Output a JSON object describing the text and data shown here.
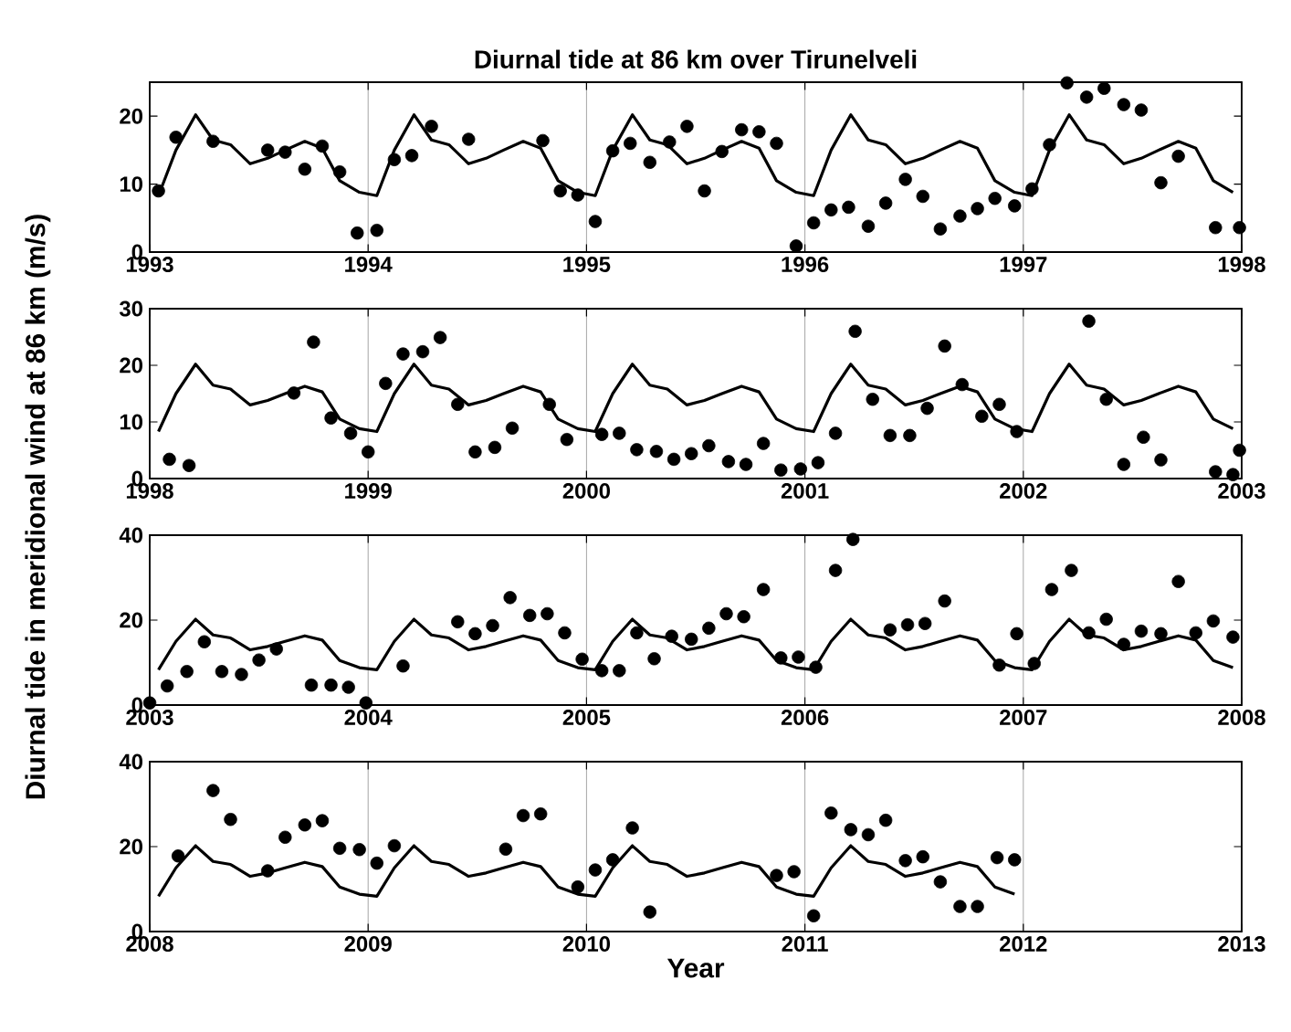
{
  "chart_data": [
    {
      "type": "line",
      "title": "Diurnal tide at 86 km over Tirunelveli",
      "ylabel": "Diurnal tide in meridional wind at 86 km (m/s)",
      "xlim": [
        1993,
        1998
      ],
      "xticks": [
        1993,
        1994,
        1995,
        1996,
        1997,
        1998
      ],
      "ylim": [
        0,
        25
      ],
      "yticks": [
        0,
        10,
        20
      ],
      "grid": "x",
      "series": [
        {
          "type": "line",
          "marker": "none",
          "color": "#000000",
          "x": [
            1993.04,
            1993.12,
            1993.21,
            1993.29,
            1993.37,
            1993.46,
            1993.54,
            1993.62,
            1993.71,
            1993.79,
            1993.87,
            1993.96,
            1994.04,
            1994.12,
            1994.21,
            1994.29,
            1994.37,
            1994.46,
            1994.54,
            1994.62,
            1994.71,
            1994.79,
            1994.87,
            1994.96,
            1995.04,
            1995.12,
            1995.21,
            1995.29,
            1995.37,
            1995.46,
            1995.54,
            1995.62,
            1995.71,
            1995.79,
            1995.87,
            1995.96,
            1996.04,
            1996.12,
            1996.21,
            1996.29,
            1996.37,
            1996.46,
            1996.54,
            1996.62,
            1996.71,
            1996.79,
            1996.87,
            1996.96,
            1997.04,
            1997.12,
            1997.21,
            1997.29,
            1997.37,
            1997.46,
            1997.54,
            1997.62,
            1997.71,
            1997.79,
            1997.87,
            1997.96
          ],
          "values": [
            8.3,
            15,
            20.2,
            16.5,
            15.8,
            13,
            13.8,
            15,
            16.3,
            15.3,
            10.5,
            8.8,
            8.3,
            15,
            20.2,
            16.5,
            15.8,
            13,
            13.8,
            15,
            16.3,
            15.3,
            10.5,
            8.8,
            8.3,
            15,
            20.2,
            16.5,
            15.8,
            13,
            13.8,
            15,
            16.3,
            15.3,
            10.5,
            8.8,
            8.3,
            15,
            20.2,
            16.5,
            15.8,
            13,
            13.8,
            15,
            16.3,
            15.3,
            10.5,
            8.8,
            8.3,
            15,
            20.2,
            16.5,
            15.8,
            13,
            13.8,
            15,
            16.3,
            15.3,
            10.5,
            8.8
          ]
        },
        {
          "type": "scatter",
          "marker": "circle",
          "color": "#000000",
          "x": [
            1993.04,
            1993.12,
            1993.29,
            1993.54,
            1993.62,
            1993.71,
            1993.79,
            1993.87,
            1993.95,
            1994.04,
            1994.12,
            1994.2,
            1994.29,
            1994.46,
            1994.8,
            1994.88,
            1994.96,
            1995.04,
            1995.12,
            1995.2,
            1995.29,
            1995.38,
            1995.46,
            1995.54,
            1995.62,
            1995.71,
            1995.79,
            1995.87,
            1995.96,
            1996.04,
            1996.12,
            1996.2,
            1996.29,
            1996.37,
            1996.46,
            1996.54,
            1996.62,
            1996.71,
            1996.79,
            1996.87,
            1996.96,
            1997.04,
            1997.12,
            1997.2,
            1997.29,
            1997.37,
            1997.46,
            1997.54,
            1997.63,
            1997.71,
            1997.88,
            1997.99
          ],
          "values": [
            9.0,
            16.9,
            16.3,
            15.0,
            14.7,
            12.2,
            15.6,
            11.8,
            2.8,
            3.2,
            13.6,
            14.2,
            18.5,
            16.6,
            16.4,
            9.0,
            8.4,
            4.5,
            14.9,
            16.0,
            13.2,
            16.2,
            18.5,
            9.0,
            14.8,
            18.0,
            17.7,
            16.0,
            0.9,
            4.3,
            6.2,
            6.6,
            3.8,
            7.2,
            10.7,
            8.2,
            3.4,
            5.3,
            6.4,
            7.9,
            6.8,
            9.3,
            15.8,
            24.9,
            22.8,
            24.1,
            21.7,
            20.9,
            10.2,
            14.1,
            3.6,
            3.6
          ]
        }
      ]
    },
    {
      "type": "line",
      "xlim": [
        1998,
        2003
      ],
      "xticks": [
        1998,
        1999,
        2000,
        2001,
        2002,
        2003
      ],
      "ylim": [
        0,
        30
      ],
      "yticks": [
        0,
        10,
        20,
        30
      ],
      "grid": "x",
      "series": [
        {
          "type": "line",
          "marker": "none",
          "color": "#000000",
          "x": [
            1998.04,
            1998.12,
            1998.21,
            1998.29,
            1998.37,
            1998.46,
            1998.54,
            1998.62,
            1998.71,
            1998.79,
            1998.87,
            1998.96,
            1999.04,
            1999.12,
            1999.21,
            1999.29,
            1999.37,
            1999.46,
            1999.54,
            1999.62,
            1999.71,
            1999.79,
            1999.87,
            1999.96,
            2000.04,
            2000.12,
            2000.21,
            2000.29,
            2000.37,
            2000.46,
            2000.54,
            2000.62,
            2000.71,
            2000.79,
            2000.87,
            2000.96,
            2001.04,
            2001.12,
            2001.21,
            2001.29,
            2001.37,
            2001.46,
            2001.54,
            2001.62,
            2001.71,
            2001.79,
            2001.87,
            2001.96,
            2002.04,
            2002.12,
            2002.21,
            2002.29,
            2002.37,
            2002.46,
            2002.54,
            2002.62,
            2002.71,
            2002.79,
            2002.87,
            2002.96
          ],
          "values": [
            8.3,
            15,
            20.2,
            16.5,
            15.8,
            13,
            13.8,
            15,
            16.3,
            15.3,
            10.5,
            8.8,
            8.3,
            15,
            20.2,
            16.5,
            15.8,
            13,
            13.8,
            15,
            16.3,
            15.3,
            10.5,
            8.8,
            8.3,
            15,
            20.2,
            16.5,
            15.8,
            13,
            13.8,
            15,
            16.3,
            15.3,
            10.5,
            8.8,
            8.3,
            15,
            20.2,
            16.5,
            15.8,
            13,
            13.8,
            15,
            16.3,
            15.3,
            10.5,
            8.8,
            8.3,
            15,
            20.2,
            16.5,
            15.8,
            13,
            13.8,
            15,
            16.3,
            15.3,
            10.5,
            8.8
          ]
        },
        {
          "type": "scatter",
          "marker": "circle",
          "color": "#000000",
          "x": [
            1998.09,
            1998.18,
            1998.66,
            1998.75,
            1998.83,
            1998.92,
            1999.0,
            1999.08,
            1999.16,
            1999.25,
            1999.33,
            1999.41,
            1999.49,
            1999.58,
            1999.66,
            1999.83,
            1999.91,
            2000.07,
            2000.15,
            2000.23,
            2000.32,
            2000.4,
            2000.48,
            2000.56,
            2000.65,
            2000.73,
            2000.81,
            2000.89,
            2000.98,
            2001.06,
            2001.14,
            2001.23,
            2001.31,
            2001.39,
            2001.48,
            2001.56,
            2001.64,
            2001.72,
            2001.81,
            2001.89,
            2001.97,
            2002.3,
            2002.38,
            2002.46,
            2002.55,
            2002.63,
            2002.88,
            2002.96,
            2002.99
          ],
          "values": [
            3.4,
            2.3,
            15.1,
            24.1,
            10.7,
            8.0,
            4.7,
            16.8,
            22.0,
            22.4,
            24.9,
            13.1,
            4.7,
            5.5,
            8.9,
            13.1,
            6.9,
            7.8,
            8.0,
            5.1,
            4.8,
            3.4,
            4.4,
            5.8,
            3.0,
            2.5,
            6.2,
            1.5,
            1.7,
            2.8,
            8.0,
            26.0,
            14.0,
            7.6,
            7.6,
            12.4,
            23.4,
            16.6,
            11.0,
            13.1,
            8.3,
            27.8,
            14.0,
            2.5,
            7.3,
            3.3,
            1.2,
            0.7,
            5.0
          ]
        }
      ]
    },
    {
      "type": "line",
      "xlim": [
        2003,
        2008
      ],
      "xticks": [
        2003,
        2004,
        2005,
        2006,
        2007,
        2008
      ],
      "ylim": [
        0,
        40
      ],
      "yticks": [
        0,
        20,
        40
      ],
      "grid": "x",
      "series": [
        {
          "type": "line",
          "marker": "none",
          "color": "#000000",
          "x": [
            2003.04,
            2003.12,
            2003.21,
            2003.29,
            2003.37,
            2003.46,
            2003.54,
            2003.62,
            2003.71,
            2003.79,
            2003.87,
            2003.96,
            2004.04,
            2004.12,
            2004.21,
            2004.29,
            2004.37,
            2004.46,
            2004.54,
            2004.62,
            2004.71,
            2004.79,
            2004.87,
            2004.96,
            2005.04,
            2005.12,
            2005.21,
            2005.29,
            2005.37,
            2005.46,
            2005.54,
            2005.62,
            2005.71,
            2005.79,
            2005.87,
            2005.96,
            2006.04,
            2006.12,
            2006.21,
            2006.29,
            2006.37,
            2006.46,
            2006.54,
            2006.62,
            2006.71,
            2006.79,
            2006.87,
            2006.96,
            2007.04,
            2007.12,
            2007.21,
            2007.29,
            2007.37,
            2007.46,
            2007.54,
            2007.62,
            2007.71,
            2007.79,
            2007.87,
            2007.96
          ],
          "values": [
            8.3,
            15,
            20.2,
            16.5,
            15.8,
            13,
            13.8,
            15,
            16.3,
            15.3,
            10.5,
            8.8,
            8.3,
            15,
            20.2,
            16.5,
            15.8,
            13,
            13.8,
            15,
            16.3,
            15.3,
            10.5,
            8.8,
            8.3,
            15,
            20.2,
            16.5,
            15.8,
            13,
            13.8,
            15,
            16.3,
            15.3,
            10.5,
            8.8,
            8.3,
            15,
            20.2,
            16.5,
            15.8,
            13,
            13.8,
            15,
            16.3,
            15.3,
            10.5,
            8.8,
            8.3,
            15,
            20.2,
            16.5,
            15.8,
            13,
            13.8,
            15,
            16.3,
            15.3,
            10.5,
            8.8
          ]
        },
        {
          "type": "scatter",
          "marker": "circle",
          "color": "#000000",
          "x": [
            2003.0,
            2003.08,
            2003.17,
            2003.25,
            2003.33,
            2003.42,
            2003.5,
            2003.58,
            2003.74,
            2003.83,
            2003.91,
            2003.99,
            2004.16,
            2004.41,
            2004.49,
            2004.57,
            2004.65,
            2004.74,
            2004.82,
            2004.9,
            2004.98,
            2005.07,
            2005.15,
            2005.23,
            2005.31,
            2005.39,
            2005.48,
            2005.56,
            2005.64,
            2005.72,
            2005.81,
            2005.89,
            2005.97,
            2006.05,
            2006.14,
            2006.22,
            2006.39,
            2006.47,
            2006.55,
            2006.64,
            2006.89,
            2006.97,
            2007.05,
            2007.13,
            2007.22,
            2007.3,
            2007.38,
            2007.46,
            2007.54,
            2007.63,
            2007.71,
            2007.79,
            2007.87,
            2007.96
          ],
          "values": [
            0.5,
            4.5,
            7.9,
            14.9,
            7.9,
            7.2,
            10.6,
            13.2,
            4.7,
            4.7,
            4.2,
            0.5,
            9.2,
            19.6,
            16.8,
            18.7,
            25.3,
            21.1,
            21.5,
            17.0,
            10.8,
            8.1,
            8.1,
            17.0,
            10.9,
            16.2,
            15.5,
            18.1,
            21.5,
            20.8,
            27.2,
            11.1,
            11.3,
            8.9,
            31.7,
            39.0,
            17.7,
            18.9,
            19.2,
            24.5,
            9.4,
            16.8,
            9.8,
            27.2,
            31.7,
            17.0,
            20.2,
            14.3,
            17.4,
            16.8,
            29.1,
            17.0,
            19.8,
            16.0
          ]
        }
      ]
    },
    {
      "type": "line",
      "xlabel": "Year",
      "xlim": [
        2008,
        2013
      ],
      "xticks": [
        2008,
        2009,
        2010,
        2011,
        2012,
        2013
      ],
      "ylim": [
        0,
        40
      ],
      "yticks": [
        0,
        20,
        40
      ],
      "grid": "x",
      "series": [
        {
          "type": "line",
          "marker": "none",
          "color": "#000000",
          "x": [
            2008.04,
            2008.12,
            2008.21,
            2008.29,
            2008.37,
            2008.46,
            2008.54,
            2008.62,
            2008.71,
            2008.79,
            2008.87,
            2008.96,
            2009.04,
            2009.12,
            2009.21,
            2009.29,
            2009.37,
            2009.46,
            2009.54,
            2009.62,
            2009.71,
            2009.79,
            2009.87,
            2009.96,
            2010.04,
            2010.12,
            2010.21,
            2010.29,
            2010.37,
            2010.46,
            2010.54,
            2010.62,
            2010.71,
            2010.79,
            2010.87,
            2010.96,
            2011.04,
            2011.12,
            2011.21,
            2011.29,
            2011.37,
            2011.46,
            2011.54,
            2011.62,
            2011.71,
            2011.79,
            2011.87,
            2011.96
          ],
          "values": [
            8.3,
            15,
            20.2,
            16.5,
            15.8,
            13,
            13.8,
            15,
            16.3,
            15.3,
            10.5,
            8.8,
            8.3,
            15,
            20.2,
            16.5,
            15.8,
            13,
            13.8,
            15,
            16.3,
            15.3,
            10.5,
            8.8,
            8.3,
            15,
            20.2,
            16.5,
            15.8,
            13,
            13.8,
            15,
            16.3,
            15.3,
            10.5,
            8.8,
            8.3,
            15,
            20.2,
            16.5,
            15.8,
            13,
            13.8,
            15,
            16.3,
            15.3,
            10.5,
            8.8
          ]
        },
        {
          "type": "scatter",
          "marker": "circle",
          "color": "#000000",
          "x": [
            2008.13,
            2008.29,
            2008.37,
            2008.54,
            2008.62,
            2008.71,
            2008.79,
            2008.87,
            2008.96,
            2009.04,
            2009.12,
            2009.63,
            2009.71,
            2009.79,
            2009.96,
            2010.04,
            2010.12,
            2010.21,
            2010.29,
            2010.87,
            2010.95,
            2011.04,
            2011.12,
            2011.21,
            2011.29,
            2011.37,
            2011.46,
            2011.54,
            2011.62,
            2011.71,
            2011.79,
            2011.88,
            2011.96
          ],
          "values": [
            17.8,
            33.2,
            26.4,
            14.3,
            22.2,
            25.1,
            26.1,
            19.6,
            19.3,
            16.1,
            20.2,
            19.4,
            27.3,
            27.7,
            10.5,
            14.5,
            16.9,
            24.4,
            4.6,
            13.2,
            14.1,
            3.7,
            27.9,
            24.0,
            22.8,
            26.2,
            16.7,
            17.6,
            11.7,
            5.9,
            5.9,
            17.4,
            16.9
          ]
        }
      ]
    }
  ]
}
